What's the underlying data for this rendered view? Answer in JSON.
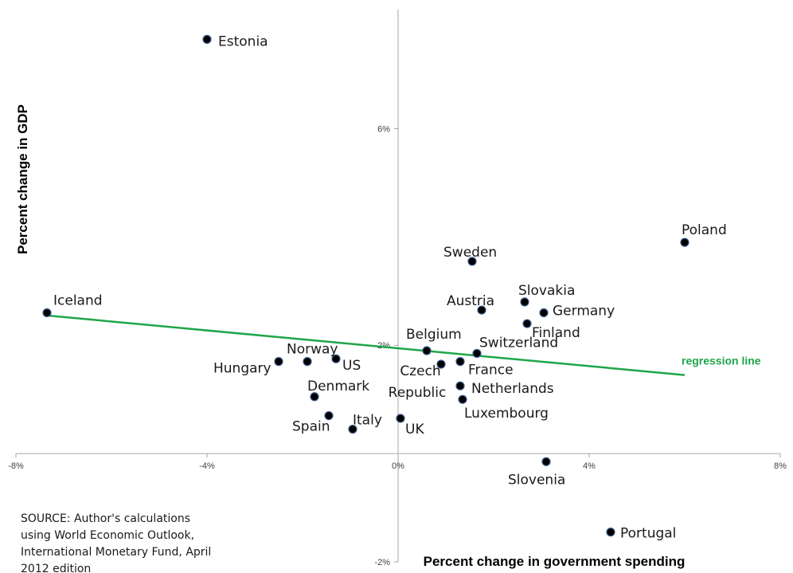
{
  "chart_data": {
    "type": "scatter",
    "xlabel": "Percent change in government spending",
    "ylabel": "Percent change in GDP",
    "xlim": [
      -8,
      8
    ],
    "ylim": [
      -2,
      8.2
    ],
    "x_ticks": [
      -8,
      -4,
      0,
      4,
      8
    ],
    "x_tick_labels": [
      "-8%",
      "-4%",
      "0%",
      "4%",
      "8%"
    ],
    "y_ticks": [
      6,
      2,
      -2
    ],
    "y_tick_labels": [
      "6%",
      "2%",
      "-2%"
    ],
    "grid": false,
    "points": [
      {
        "label": "Estonia",
        "x": -4.0,
        "y": 7.65
      },
      {
        "label": "Poland",
        "x": 6.0,
        "y": 3.9
      },
      {
        "label": "Sweden",
        "x": 1.55,
        "y": 3.55
      },
      {
        "label": "Iceland",
        "x": -7.35,
        "y": 2.6
      },
      {
        "label": "Slovakia",
        "x": 2.65,
        "y": 2.8
      },
      {
        "label": "Austria",
        "x": 1.75,
        "y": 2.65
      },
      {
        "label": "Germany",
        "x": 3.05,
        "y": 2.6
      },
      {
        "label": "Finland",
        "x": 2.7,
        "y": 2.4
      },
      {
        "label": "Belgium",
        "x": 0.6,
        "y": 1.9
      },
      {
        "label": "Switzerland",
        "x": 1.65,
        "y": 1.85
      },
      {
        "label": "Czech Republic",
        "x": 0.9,
        "y": 1.65
      },
      {
        "label": "France",
        "x": 1.3,
        "y": 1.7
      },
      {
        "label": "Norway",
        "x": -1.9,
        "y": 1.7
      },
      {
        "label": "US",
        "x": -1.3,
        "y": 1.75
      },
      {
        "label": "Hungary",
        "x": -2.5,
        "y": 1.7
      },
      {
        "label": "Netherlands",
        "x": 1.3,
        "y": 1.25
      },
      {
        "label": "Luxembourg",
        "x": 1.35,
        "y": 1.0
      },
      {
        "label": "Denmark",
        "x": -1.75,
        "y": 1.05
      },
      {
        "label": "Spain",
        "x": -1.45,
        "y": 0.7
      },
      {
        "label": "Italy",
        "x": -0.95,
        "y": 0.45
      },
      {
        "label": "UK",
        "x": 0.05,
        "y": 0.65
      },
      {
        "label": "Slovenia",
        "x": 3.1,
        "y": -0.15
      },
      {
        "label": "Portugal",
        "x": 4.45,
        "y": -1.45
      }
    ],
    "regression_line": {
      "label": "regression line",
      "x": [
        -7.35,
        6.0
      ],
      "y": [
        2.55,
        1.45
      ],
      "color": "#1fa64a"
    },
    "marker_color": "#000000",
    "marker_edge_color": "#3a5a8c",
    "annotation": "SOURCE: Author's calculations using World Economic Outlook, International Monetary Fund, April 2012 edition"
  }
}
